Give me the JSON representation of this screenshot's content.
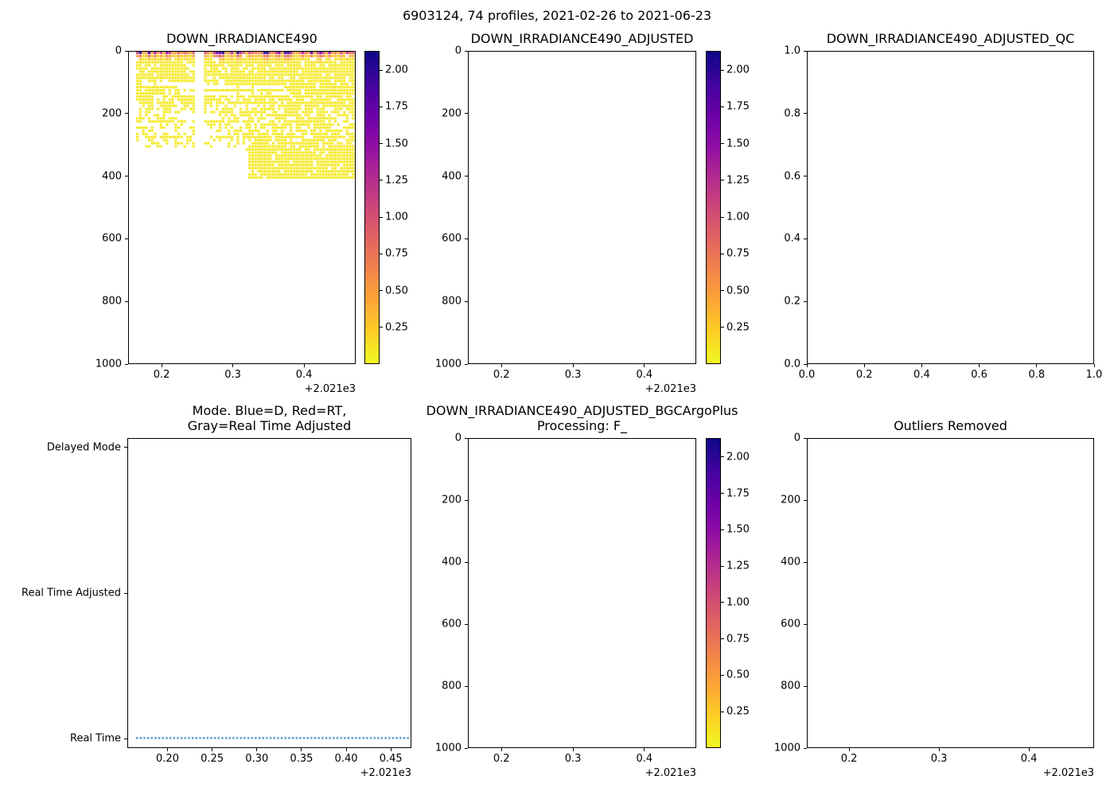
{
  "figure": {
    "suptitle": "6903124, 74 profiles, 2021-02-26 to 2021-06-23",
    "background": "#ffffff"
  },
  "colors": {
    "scatter_blue": "#1f77b4",
    "axis_color": "#000000",
    "plasma_stops": [
      "#0d0887",
      "#41049d",
      "#6a00a8",
      "#8f0da4",
      "#b12a90",
      "#cc4778",
      "#e16462",
      "#f2844b",
      "#fca636",
      "#fcce25",
      "#f0f921"
    ]
  },
  "chart_data": [
    {
      "id": "down_irradiance490",
      "type": "heatmap",
      "title": "DOWN_IRRADIANCE490",
      "x_axis": {
        "offset_text": "+2.021e3",
        "lim": [
          0.153,
          0.4725
        ],
        "ticks": [
          {
            "label": "0.2",
            "v": 0.2,
            "f": 0.1471
          },
          {
            "label": "0.3",
            "v": 0.3,
            "f": 0.4601
          },
          {
            "label": "0.4",
            "v": 0.4,
            "f": 0.7731
          }
        ]
      },
      "y_axis": {
        "lim": [
          1000,
          0
        ],
        "ticks": [
          {
            "label": "0",
            "v": 0,
            "f": 0.0
          },
          {
            "label": "200",
            "v": 200,
            "f": 0.2
          },
          {
            "label": "400",
            "v": 400,
            "f": 0.4
          },
          {
            "label": "600",
            "v": 600,
            "f": 0.6
          },
          {
            "label": "800",
            "v": 800,
            "f": 0.8
          },
          {
            "label": "1000",
            "v": 1000,
            "f": 1.0
          }
        ]
      },
      "colorbar": {
        "vmin": 0.0,
        "vmax": 2.13,
        "ticks": [
          {
            "label": "2.00",
            "v": 2.0,
            "f": 0.061
          },
          {
            "label": "1.75",
            "v": 1.75,
            "f": 0.1784
          },
          {
            "label": "1.50",
            "v": 1.5,
            "f": 0.2958
          },
          {
            "label": "1.25",
            "v": 1.25,
            "f": 0.4131
          },
          {
            "label": "1.00",
            "v": 1.0,
            "f": 0.5305
          },
          {
            "label": "0.75",
            "v": 0.75,
            "f": 0.6479
          },
          {
            "label": "0.50",
            "v": 0.5,
            "f": 0.7653
          },
          {
            "label": "0.25",
            "v": 0.25,
            "f": 0.8826
          }
        ]
      },
      "profiles": {
        "count": 74,
        "x_first": 0.165,
        "x_last": 0.47,
        "x_gap": [
          0.2465,
          0.258
        ],
        "depth_break_x": 0.322,
        "max_depth_before_break": 300,
        "max_depth_after_break": 405,
        "depth_step_m": 10,
        "surface_value_max": 2.13,
        "deep_value": 0.08,
        "decay_depth_m": 12,
        "seed": 42
      }
    },
    {
      "id": "down_irradiance490_adjusted",
      "type": "heatmap",
      "empty": true,
      "title": "DOWN_IRRADIANCE490_ADJUSTED",
      "x_axis": {
        "offset_text": "+2.021e3",
        "lim": [
          0.153,
          0.4725
        ],
        "ticks": [
          {
            "label": "0.2",
            "v": 0.2,
            "f": 0.1471
          },
          {
            "label": "0.3",
            "v": 0.3,
            "f": 0.4601
          },
          {
            "label": "0.4",
            "v": 0.4,
            "f": 0.7731
          }
        ]
      },
      "y_axis": {
        "lim": [
          1000,
          0
        ],
        "ticks": [
          {
            "label": "0",
            "v": 0,
            "f": 0.0
          },
          {
            "label": "200",
            "v": 200,
            "f": 0.2
          },
          {
            "label": "400",
            "v": 400,
            "f": 0.4
          },
          {
            "label": "600",
            "v": 600,
            "f": 0.6
          },
          {
            "label": "800",
            "v": 800,
            "f": 0.8
          },
          {
            "label": "1000",
            "v": 1000,
            "f": 1.0
          }
        ]
      },
      "colorbar": {
        "vmin": 0.0,
        "vmax": 2.13,
        "ticks": [
          {
            "label": "2.00",
            "v": 2.0,
            "f": 0.061
          },
          {
            "label": "1.75",
            "v": 1.75,
            "f": 0.1784
          },
          {
            "label": "1.50",
            "v": 1.5,
            "f": 0.2958
          },
          {
            "label": "1.25",
            "v": 1.25,
            "f": 0.4131
          },
          {
            "label": "1.00",
            "v": 1.0,
            "f": 0.5305
          },
          {
            "label": "0.75",
            "v": 0.75,
            "f": 0.6479
          },
          {
            "label": "0.50",
            "v": 0.5,
            "f": 0.7653
          },
          {
            "label": "0.25",
            "v": 0.25,
            "f": 0.8826
          }
        ]
      }
    },
    {
      "id": "down_irradiance490_adjusted_qc",
      "type": "empty",
      "title": "DOWN_IRRADIANCE490_ADJUSTED_QC",
      "x_axis": {
        "lim": [
          0.0,
          1.0
        ],
        "ticks": [
          {
            "label": "0.0",
            "v": 0.0,
            "f": 0.0
          },
          {
            "label": "0.2",
            "v": 0.2,
            "f": 0.2
          },
          {
            "label": "0.4",
            "v": 0.4,
            "f": 0.4
          },
          {
            "label": "0.6",
            "v": 0.6,
            "f": 0.6
          },
          {
            "label": "0.8",
            "v": 0.8,
            "f": 0.8
          },
          {
            "label": "1.0",
            "v": 1.0,
            "f": 1.0
          }
        ]
      },
      "y_axis": {
        "lim": [
          0.0,
          1.0
        ],
        "ticks": [
          {
            "label": "1.0",
            "v": 1.0,
            "f": 0.0
          },
          {
            "label": "0.8",
            "v": 0.8,
            "f": 0.2
          },
          {
            "label": "0.6",
            "v": 0.6,
            "f": 0.4
          },
          {
            "label": "0.4",
            "v": 0.4,
            "f": 0.6
          },
          {
            "label": "0.2",
            "v": 0.2,
            "f": 0.8
          },
          {
            "label": "0.0",
            "v": 0.0,
            "f": 1.0
          }
        ]
      }
    },
    {
      "id": "mode",
      "type": "scatter",
      "title": "Mode. Blue=D, Red=RT,\nGray=Real Time Adjusted",
      "x_axis": {
        "offset_text": "+2.021e3",
        "lim": [
          0.155,
          0.473
        ],
        "ticks": [
          {
            "label": "0.20",
            "v": 0.2,
            "f": 0.1415
          },
          {
            "label": "0.25",
            "v": 0.25,
            "f": 0.2987
          },
          {
            "label": "0.30",
            "v": 0.3,
            "f": 0.456
          },
          {
            "label": "0.35",
            "v": 0.35,
            "f": 0.6132
          },
          {
            "label": "0.40",
            "v": 0.4,
            "f": 0.7704
          },
          {
            "label": "0.45",
            "v": 0.45,
            "f": 0.9277
          }
        ]
      },
      "y_axis": {
        "categories": [
          "Delayed Mode",
          "Real Time Adjusted",
          "Real Time"
        ],
        "ticks": [
          {
            "label": "Delayed Mode",
            "f": 0.03
          },
          {
            "label": "Real Time Adjusted",
            "f": 0.5
          },
          {
            "label": "Real Time",
            "f": 0.97
          }
        ]
      },
      "series": [
        {
          "name": "mode-points",
          "color": "#1f77b4",
          "y_category": "Real Time",
          "x_start": 0.165,
          "x_end": 0.47,
          "count": 74,
          "marker": "dot"
        }
      ]
    },
    {
      "id": "down_irradiance490_adjusted_bgcargoplus",
      "type": "heatmap",
      "empty": true,
      "title": "DOWN_IRRADIANCE490_ADJUSTED_BGCArgoPlus\nProcessing: F_",
      "x_axis": {
        "offset_text": "+2.021e3",
        "lim": [
          0.153,
          0.4725
        ],
        "ticks": [
          {
            "label": "0.2",
            "v": 0.2,
            "f": 0.1471
          },
          {
            "label": "0.3",
            "v": 0.3,
            "f": 0.4601
          },
          {
            "label": "0.4",
            "v": 0.4,
            "f": 0.7731
          }
        ]
      },
      "y_axis": {
        "lim": [
          1000,
          0
        ],
        "ticks": [
          {
            "label": "0",
            "v": 0,
            "f": 0.0
          },
          {
            "label": "200",
            "v": 200,
            "f": 0.2
          },
          {
            "label": "400",
            "v": 400,
            "f": 0.4
          },
          {
            "label": "600",
            "v": 600,
            "f": 0.6
          },
          {
            "label": "800",
            "v": 800,
            "f": 0.8
          },
          {
            "label": "1000",
            "v": 1000,
            "f": 1.0
          }
        ]
      },
      "colorbar": {
        "vmin": 0.0,
        "vmax": 2.13,
        "ticks": [
          {
            "label": "2.00",
            "v": 2.0,
            "f": 0.061
          },
          {
            "label": "1.75",
            "v": 1.75,
            "f": 0.1784
          },
          {
            "label": "1.50",
            "v": 1.5,
            "f": 0.2958
          },
          {
            "label": "1.25",
            "v": 1.25,
            "f": 0.4131
          },
          {
            "label": "1.00",
            "v": 1.0,
            "f": 0.5305
          },
          {
            "label": "0.75",
            "v": 0.75,
            "f": 0.6479
          },
          {
            "label": "0.50",
            "v": 0.5,
            "f": 0.7653
          },
          {
            "label": "0.25",
            "v": 0.25,
            "f": 0.8826
          }
        ]
      }
    },
    {
      "id": "outliers_removed",
      "type": "empty",
      "title": "Outliers Removed",
      "x_axis": {
        "offset_text": "+2.021e3",
        "lim": [
          0.153,
          0.4725
        ],
        "ticks": [
          {
            "label": "0.2",
            "v": 0.2,
            "f": 0.1471
          },
          {
            "label": "0.3",
            "v": 0.3,
            "f": 0.4601
          },
          {
            "label": "0.4",
            "v": 0.4,
            "f": 0.7731
          }
        ]
      },
      "y_axis": {
        "lim": [
          1000,
          0
        ],
        "ticks": [
          {
            "label": "0",
            "v": 0,
            "f": 0.0
          },
          {
            "label": "200",
            "v": 200,
            "f": 0.2
          },
          {
            "label": "400",
            "v": 400,
            "f": 0.4
          },
          {
            "label": "600",
            "v": 600,
            "f": 0.6
          },
          {
            "label": "800",
            "v": 800,
            "f": 0.8
          },
          {
            "label": "1000",
            "v": 1000,
            "f": 1.0
          }
        ]
      }
    }
  ]
}
